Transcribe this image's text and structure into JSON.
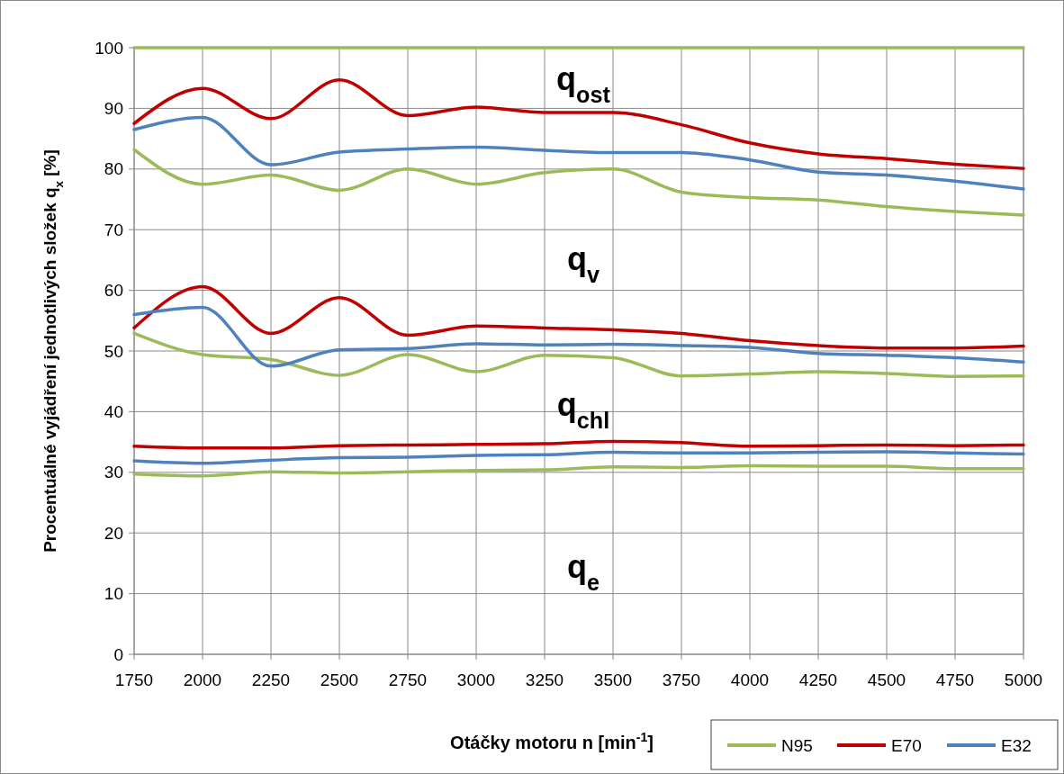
{
  "chart_data": {
    "type": "line",
    "xlabel": "Otáčky motoru n [min$^{-1}$]",
    "ylabel": "Procentuálné vyjádření jednotlivých složek q$_{x}$ [%]",
    "x": [
      1750,
      2000,
      2250,
      2500,
      2750,
      3000,
      3250,
      3500,
      3750,
      4000,
      4250,
      4500,
      4750,
      5000
    ],
    "xlim": [
      1750,
      5000
    ],
    "xticks": [
      1750,
      2000,
      2250,
      2500,
      2750,
      3000,
      3250,
      3500,
      3750,
      4000,
      4250,
      4500,
      4750,
      5000
    ],
    "ylim": [
      0,
      100
    ],
    "yticks": [
      0,
      10,
      20,
      30,
      40,
      50,
      60,
      70,
      80,
      90,
      100
    ],
    "grid": true,
    "legend": "bottom right",
    "line_style": "solid",
    "marker": "none",
    "series": [
      {
        "name": "N95",
        "color": "#9bbb59",
        "values": [
          29.7,
          29.4,
          30.1,
          29.9,
          30.1,
          30.3,
          30.4,
          30.9,
          30.8,
          31.1,
          31.0,
          31.0,
          30.6,
          30.6
        ]
      },
      {
        "name": "E70",
        "color": "#c00000",
        "values": [
          34.3,
          34.0,
          34.0,
          34.4,
          34.5,
          34.6,
          34.7,
          35.1,
          34.9,
          34.3,
          34.4,
          34.5,
          34.4,
          34.5
        ]
      },
      {
        "name": "E32",
        "color": "#4f81bd",
        "values": [
          31.9,
          31.5,
          32.0,
          32.4,
          32.5,
          32.8,
          32.9,
          33.3,
          33.2,
          33.2,
          33.3,
          33.4,
          33.2,
          33.0
        ]
      },
      {
        "color": "#9bbb59",
        "values": [
          52.9,
          49.4,
          48.6,
          46.0,
          49.4,
          46.6,
          49.3,
          48.9,
          45.9,
          46.2,
          46.6,
          46.3,
          45.8,
          45.9
        ]
      },
      {
        "color": "#c00000",
        "values": [
          53.8,
          60.6,
          52.9,
          58.8,
          52.6,
          54.1,
          53.8,
          53.5,
          52.9,
          51.7,
          50.9,
          50.5,
          50.5,
          50.8
        ]
      },
      {
        "color": "#4f81bd",
        "values": [
          56.0,
          57.2,
          47.5,
          50.2,
          50.4,
          51.2,
          51.0,
          51.1,
          50.9,
          50.6,
          49.6,
          49.3,
          48.9,
          48.2
        ]
      },
      {
        "color": "#9bbb59",
        "values": [
          83.2,
          77.5,
          79.0,
          76.5,
          80.0,
          77.5,
          79.4,
          80.0,
          76.2,
          75.3,
          74.9,
          73.8,
          73.0,
          72.4
        ]
      },
      {
        "color": "#c00000",
        "values": [
          87.5,
          93.3,
          88.3,
          94.7,
          88.8,
          90.2,
          89.3,
          89.3,
          87.3,
          84.3,
          82.5,
          81.7,
          80.8,
          80.1
        ]
      },
      {
        "color": "#4f81bd",
        "values": [
          86.5,
          88.5,
          80.7,
          82.8,
          83.3,
          83.6,
          83.1,
          82.7,
          82.7,
          81.5,
          79.5,
          79.0,
          78.0,
          76.7
        ]
      },
      {
        "color": "#9bbb59",
        "values": [
          100,
          100,
          100,
          100,
          100,
          100,
          100,
          100,
          100,
          100,
          100,
          100,
          100,
          100
        ]
      }
    ],
    "annotations": [
      "q$_{ost}$",
      "q$_{v}$",
      "q$_{chl}$",
      "q$_{e}$"
    ]
  }
}
